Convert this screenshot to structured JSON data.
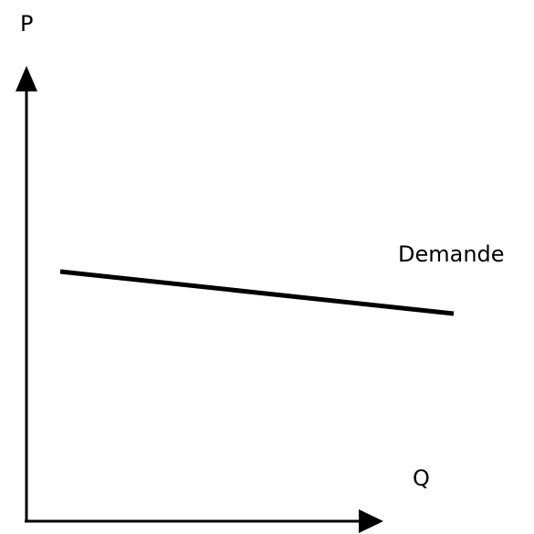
{
  "axes": {
    "y": "P",
    "x": "Q"
  },
  "curve": {
    "label": "Demande"
  }
}
